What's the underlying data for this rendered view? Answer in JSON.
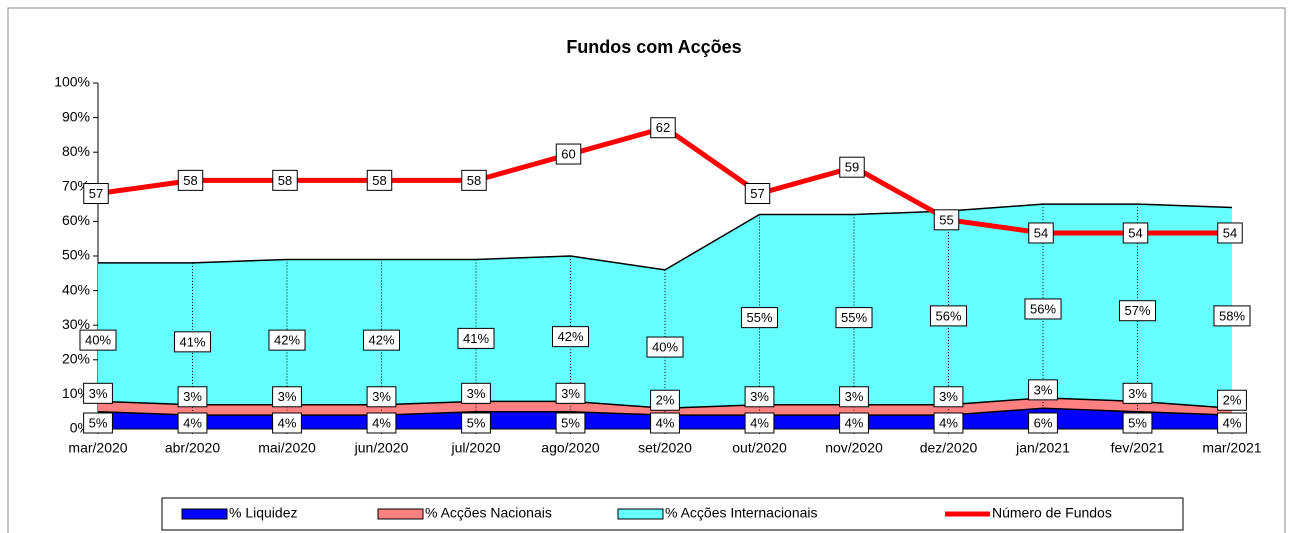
{
  "chart_data": {
    "type": "stacked-area-line",
    "title": "Fundos com Acções",
    "categories": [
      "mar/2020",
      "abr/2020",
      "mai/2020",
      "jun/2020",
      "jul/2020",
      "ago/2020",
      "set/2020",
      "out/2020",
      "nov/2020",
      "dez/2020",
      "jan/2021",
      "fev/2021",
      "mar/2021"
    ],
    "ylim": [
      0,
      100
    ],
    "yticks": [
      {
        "value": 0,
        "label": "0%"
      },
      {
        "value": 10,
        "label": "10%"
      },
      {
        "value": 20,
        "label": "20%"
      },
      {
        "value": 30,
        "label": "30%"
      },
      {
        "value": 40,
        "label": "40%"
      },
      {
        "value": 50,
        "label": "50%"
      },
      {
        "value": 60,
        "label": "60%"
      },
      {
        "value": 70,
        "label": "70%"
      },
      {
        "value": 80,
        "label": "80%"
      },
      {
        "value": 90,
        "label": "90%"
      },
      {
        "value": 100,
        "label": "100%"
      }
    ],
    "y2lim": [
      39.1,
      65.4
    ],
    "series": [
      {
        "name": "% Liquidez",
        "color": "#0000ff",
        "kind": "area",
        "values": [
          5,
          4,
          4,
          4,
          5,
          5,
          4,
          4,
          4,
          4,
          6,
          5,
          4
        ],
        "value_labels": [
          "5%",
          "4%",
          "4%",
          "4%",
          "5%",
          "5%",
          "4%",
          "4%",
          "4%",
          "4%",
          "6%",
          "5%",
          "4%"
        ]
      },
      {
        "name": "% Acções Nacionais",
        "color": "#ff8080",
        "kind": "area",
        "values": [
          3,
          3,
          3,
          3,
          3,
          3,
          2,
          3,
          3,
          3,
          3,
          3,
          2
        ],
        "value_labels": [
          "3%",
          "3%",
          "3%",
          "3%",
          "3%",
          "3%",
          "2%",
          "3%",
          "3%",
          "3%",
          "3%",
          "3%",
          "2%"
        ]
      },
      {
        "name": "% Acções Internacionais",
        "color": "#66ffff",
        "kind": "area",
        "values": [
          40,
          41,
          42,
          42,
          41,
          42,
          40,
          55,
          55,
          56,
          56,
          57,
          58
        ],
        "value_labels": [
          "40%",
          "41%",
          "42%",
          "42%",
          "41%",
          "42%",
          "40%",
          "55%",
          "55%",
          "56%",
          "56%",
          "57%",
          "58%"
        ]
      },
      {
        "name": "Número de Fundos",
        "color": "#ff0000",
        "kind": "line",
        "axis": "y2",
        "values": [
          57,
          58,
          58,
          58,
          58,
          60,
          62,
          57,
          59,
          55,
          54,
          54,
          54
        ]
      }
    ]
  }
}
